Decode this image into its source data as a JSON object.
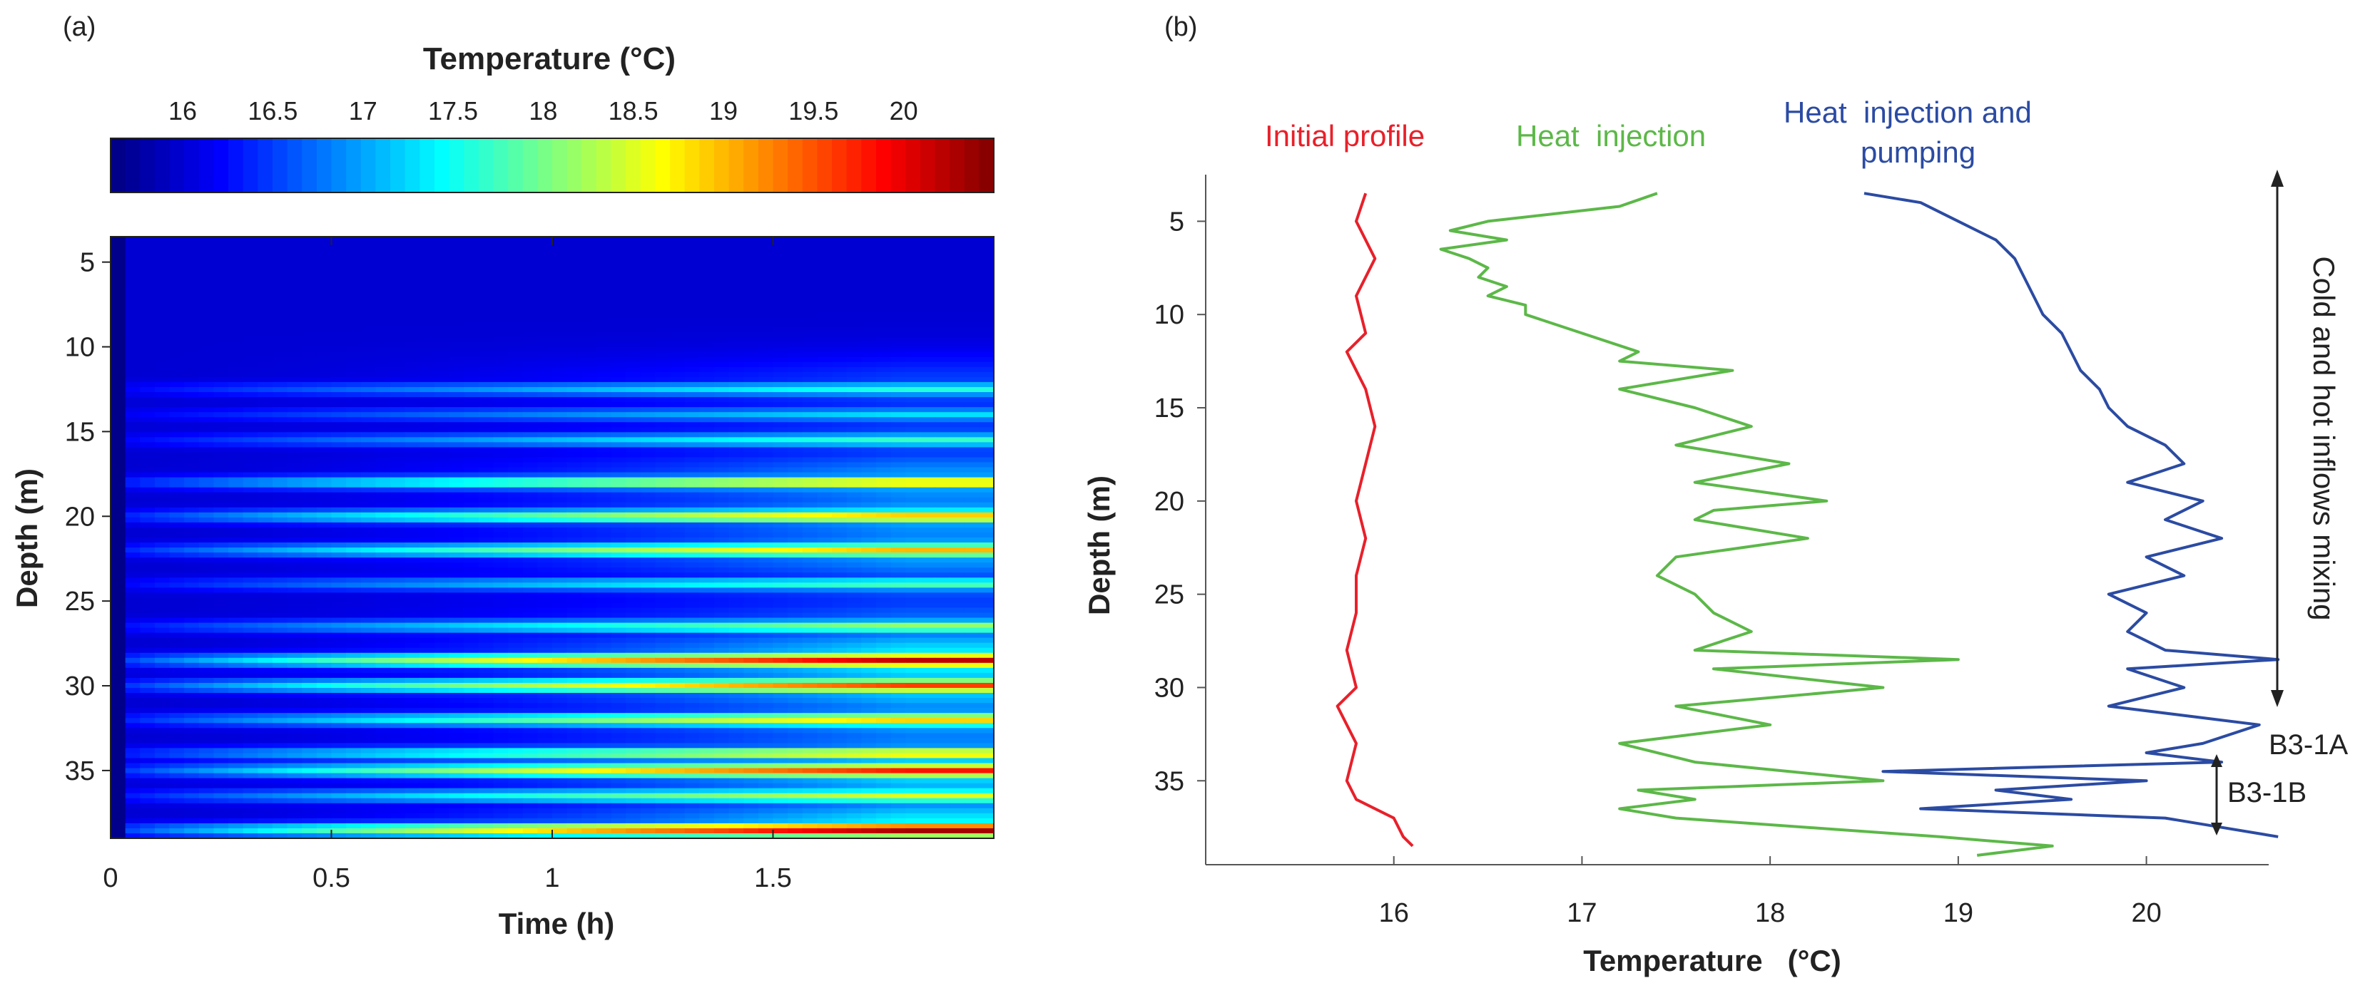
{
  "chart_data": [
    {
      "type": "heatmap",
      "panel_label": "(a)",
      "xlabel": "Time (h)",
      "ylabel": "Depth (m)",
      "xlim": [
        0,
        2
      ],
      "ylim": [
        39,
        3.5
      ],
      "xticks": [
        "0",
        "0.5",
        "1",
        "1.5"
      ],
      "yticks": [
        "5",
        "10",
        "15",
        "20",
        "25",
        "30",
        "35"
      ],
      "colorbar": {
        "title": "Temperature (°C)",
        "ticks": [
          "16",
          "16.5",
          "17",
          "17.5",
          "18",
          "18.5",
          "19",
          "19.5",
          "20"
        ],
        "range": [
          15.6,
          20.5
        ],
        "colormap": "jet"
      },
      "base_temperature": 16.0,
      "inflow_layers": [
        {
          "depth": 12.5,
          "peak_temperature": 17.6
        },
        {
          "depth": 14.0,
          "peak_temperature": 17.3
        },
        {
          "depth": 15.5,
          "peak_temperature": 17.7
        },
        {
          "depth": 18.0,
          "peak_temperature": 18.9
        },
        {
          "depth": 20.0,
          "peak_temperature": 19.0
        },
        {
          "depth": 22.0,
          "peak_temperature": 19.0
        },
        {
          "depth": 24.0,
          "peak_temperature": 17.8
        },
        {
          "depth": 26.5,
          "peak_temperature": 18.2
        },
        {
          "depth": 28.5,
          "peak_temperature": 20.2
        },
        {
          "depth": 30.0,
          "peak_temperature": 19.6
        },
        {
          "depth": 32.0,
          "peak_temperature": 18.9
        },
        {
          "depth": 34.0,
          "peak_temperature": 18.8
        },
        {
          "depth": 35.0,
          "peak_temperature": 19.8
        },
        {
          "depth": 36.5,
          "peak_temperature": 18.5
        },
        {
          "depth": 38.5,
          "peak_temperature": 20.4
        }
      ]
    },
    {
      "type": "line",
      "panel_label": "(b)",
      "xlabel": "Temperature   (°C)",
      "ylabel": "Depth (m)",
      "xlim": [
        15,
        20.65
      ],
      "ylim": [
        39.5,
        2.5
      ],
      "xticks": [
        "16",
        "17",
        "18",
        "19",
        "20"
      ],
      "yticks": [
        "5",
        "10",
        "15",
        "20",
        "25",
        "30",
        "35"
      ],
      "series": [
        {
          "name": "Initial profile",
          "color": "#e8202a",
          "depth": [
            3.5,
            5,
            7,
            9,
            11,
            12,
            14,
            16,
            18,
            20,
            22,
            24,
            26,
            28,
            30,
            31,
            33,
            35,
            36,
            37,
            38,
            38.5
          ],
          "temperature": [
            15.85,
            15.8,
            15.9,
            15.8,
            15.85,
            15.75,
            15.85,
            15.9,
            15.85,
            15.8,
            15.85,
            15.8,
            15.8,
            15.75,
            15.8,
            15.7,
            15.8,
            15.75,
            15.8,
            16.0,
            16.05,
            16.1
          ]
        },
        {
          "name": "Heat  injection",
          "color": "#5cb848",
          "depth": [
            3.5,
            4.2,
            5,
            5.5,
            6,
            6.5,
            7,
            7.5,
            8,
            8.5,
            9,
            9.5,
            10,
            11,
            12,
            12.5,
            13,
            14,
            15,
            16,
            17,
            18,
            19,
            20,
            20.5,
            21,
            22,
            23,
            24,
            25,
            26,
            27,
            28,
            28.5,
            29,
            30,
            31,
            32,
            33,
            34,
            35,
            35.5,
            36,
            36.5,
            37,
            38,
            38.5,
            39
          ],
          "temperature": [
            17.4,
            17.2,
            16.5,
            16.3,
            16.6,
            16.25,
            16.4,
            16.5,
            16.45,
            16.6,
            16.5,
            16.7,
            16.7,
            17.0,
            17.3,
            17.2,
            17.8,
            17.2,
            17.6,
            17.9,
            17.5,
            18.1,
            17.6,
            18.3,
            17.7,
            17.6,
            18.2,
            17.5,
            17.4,
            17.6,
            17.7,
            17.9,
            17.6,
            19.0,
            17.7,
            18.6,
            17.5,
            18.0,
            17.2,
            17.6,
            18.6,
            17.3,
            17.6,
            17.2,
            17.5,
            18.9,
            19.5,
            19.1
          ]
        },
        {
          "name": "Heat  injection and pumping",
          "color": "#2b4ba3",
          "depth": [
            3.5,
            4,
            5,
            6,
            7,
            8,
            9,
            10,
            11,
            12,
            13,
            14,
            15,
            16,
            17,
            18,
            19,
            20,
            21,
            22,
            23,
            24,
            25,
            26,
            27,
            28,
            28.5,
            29,
            30,
            31,
            32,
            33,
            33.5,
            34,
            34.5,
            35,
            35.5,
            36,
            36.5,
            37,
            37.5,
            38
          ],
          "temperature": [
            18.5,
            18.8,
            19.0,
            19.2,
            19.3,
            19.35,
            19.4,
            19.45,
            19.55,
            19.6,
            19.65,
            19.75,
            19.8,
            19.9,
            20.1,
            20.2,
            19.9,
            20.3,
            20.1,
            20.4,
            20.0,
            20.2,
            19.8,
            20.0,
            19.9,
            20.1,
            20.7,
            19.9,
            20.2,
            19.8,
            20.6,
            20.3,
            20.0,
            20.4,
            18.6,
            20.0,
            19.2,
            19.6,
            18.8,
            20.1,
            20.4,
            20.7
          ]
        }
      ],
      "annotations": {
        "bracket_label": "Cold and hot inflows mixing",
        "label_1": "B3-1A",
        "label_2": "B3-1B"
      }
    }
  ]
}
